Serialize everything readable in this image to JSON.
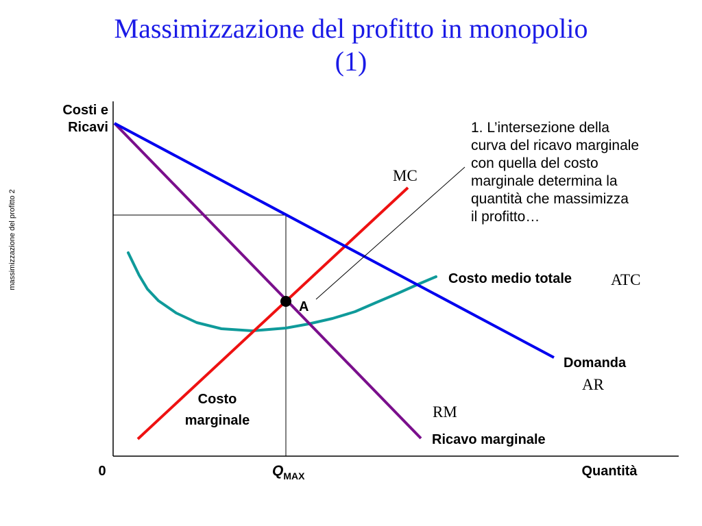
{
  "title": {
    "line1": "Massimizzazione del profitto in monopolio",
    "line2": "(1)"
  },
  "side_label": "massimizzazione del profitto 2",
  "axes": {
    "y_label_line1": "Costi e",
    "y_label_line2": "Ricavi",
    "x_label": "Quantità",
    "origin": "0",
    "q_max_main": "Q",
    "q_max_sub": "MAX"
  },
  "curves": {
    "mc_short": "MC",
    "mc_long_line1": "Costo",
    "mc_long_line2": "marginale",
    "atc_long": "Costo medio totale",
    "atc_short": "ATC",
    "demand_long": "Domanda",
    "demand_short": "AR",
    "mr_short": "RM",
    "mr_long": "Ricavo marginale"
  },
  "point_label": "A",
  "note": {
    "lines": [
      "1. L’intersezione della",
      "curva del ricavo marginale",
      "con quella del costo",
      "marginale determina la",
      "quantità che massimizza",
      "il profitto…"
    ]
  },
  "colors": {
    "title": "#1a1ae6",
    "demand": "#0000ee",
    "mr": "#7a0f8c",
    "mc": "#ee1111",
    "atc": "#0f9a9a",
    "axis": "#000000"
  }
}
